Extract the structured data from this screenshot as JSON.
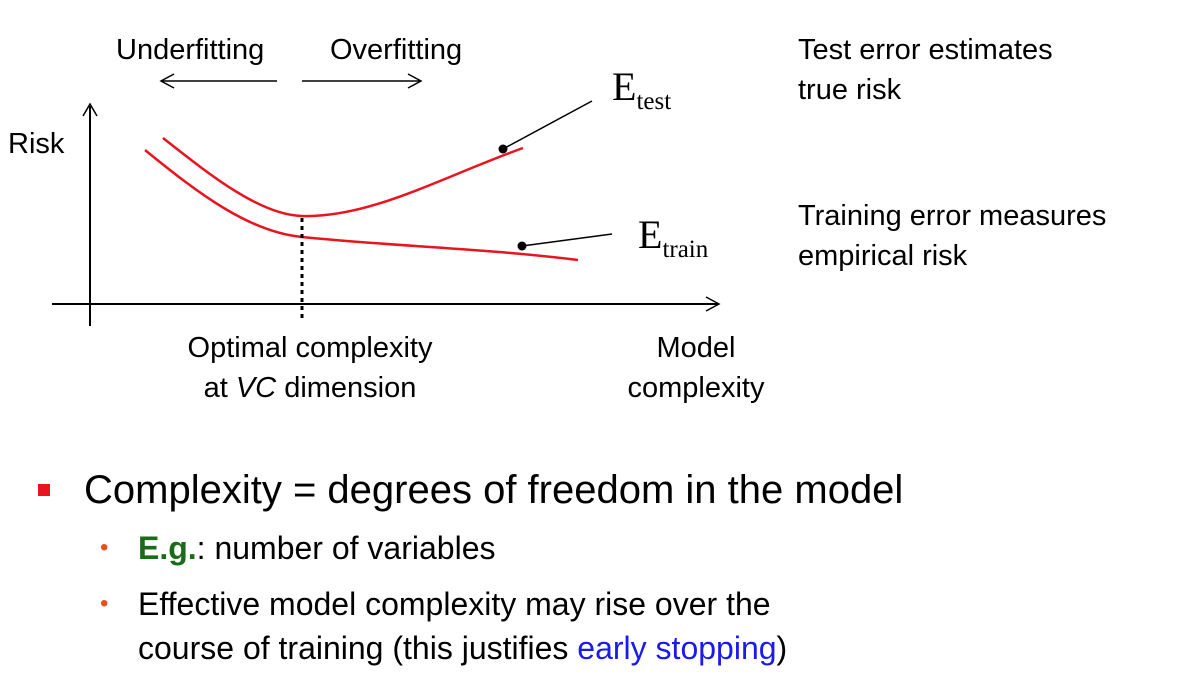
{
  "diagram": {
    "underfitting": "Underfitting",
    "overfitting": "Overfitting",
    "risk": "Risk",
    "e_test_main": "E",
    "e_test_sub": "test",
    "e_train_main": "E",
    "e_train_sub": "train",
    "optimal_line1": "Optimal complexity",
    "optimal_line2_pre": "at ",
    "optimal_line2_italic": "VC",
    "optimal_line2_post": " dimension",
    "model_line1": "Model",
    "model_line2": "complexity",
    "test_note_line1": "Test error estimates",
    "test_note_line2": "true risk",
    "train_note_line1": "Training error measures",
    "train_note_line2": "empirical risk"
  },
  "bullets": {
    "main": "Complexity = degrees of freedom in the model",
    "items": [
      {
        "emph": "E.g.",
        "text": ": number of variables"
      },
      {
        "line1": "Effective model complexity may rise over the",
        "line2_pre": "course of training (this justifies ",
        "link": "early stopping",
        "line2_post": ")"
      }
    ]
  },
  "colors": {
    "curve": "#e8141e",
    "bullet_square": "#e8141e",
    "bullet_dot": "#e8501e",
    "emph": "#1a6b1a",
    "link": "#1a1aee"
  }
}
